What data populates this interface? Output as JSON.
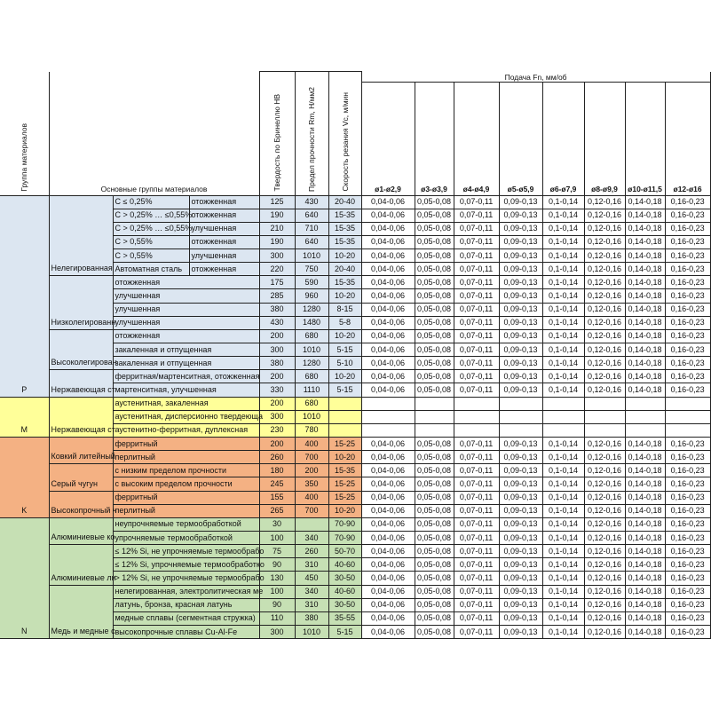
{
  "header": {
    "group_col": "Группа материалов",
    "main_groups": "Основные группы материалов",
    "hardness": "Твердость по Бринеллю НВ",
    "strength": "Предел прочности Rm, Н/мм2",
    "speed": "Скорость резания Vc, м/мин",
    "feed_title": "Подача Fn, мм/об",
    "diameters": [
      "ø1-ø2,9",
      "ø3-ø3,9",
      "ø4-ø4,9",
      "ø5-ø5,9",
      "ø6-ø7,9",
      "ø8-ø9,9",
      "ø10-ø11,5",
      "ø12-ø16"
    ]
  },
  "feed_values": [
    "0,04-0,06",
    "0,05-0,08",
    "0,07-0,11",
    "0,09-0,13",
    "0,1-0,14",
    "0,12-0,16",
    "0,14-0,18",
    "0,16-0,23"
  ],
  "groups": [
    {
      "code": "P",
      "color": "#dce6f1",
      "subgroups": [
        {
          "name": "Нелегированная",
          "rows": [
            {
              "c1": "C ≤ 0,25%",
              "c2": "отожженная",
              "hb": "125",
              "rm": "430",
              "vc": "20-40",
              "feed": true
            },
            {
              "c1": "C > 0,25% … ≤0,55%",
              "c2": "отожженная",
              "hb": "190",
              "rm": "640",
              "vc": "15-35",
              "feed": true
            },
            {
              "c1": "C > 0,25% … ≤0,55%",
              "c2": "улучшенная",
              "hb": "210",
              "rm": "710",
              "vc": "15-35",
              "feed": true
            },
            {
              "c1": "C > 0,55%",
              "c2": "отожженная",
              "hb": "190",
              "rm": "640",
              "vc": "15-35",
              "feed": true
            },
            {
              "c1": "C > 0,55%",
              "c2": "улучшенная",
              "hb": "300",
              "rm": "1010",
              "vc": "10-20",
              "feed": true
            },
            {
              "c1": "Автоматная сталь",
              "c2": "отожженная",
              "hb": "220",
              "rm": "750",
              "vc": "20-40",
              "feed": true
            }
          ]
        },
        {
          "name": "Низколегированн",
          "rows": [
            {
              "c1": "отожженная",
              "hb": "175",
              "rm": "590",
              "vc": "15-35",
              "feed": true
            },
            {
              "c1": "улучшенная",
              "hb": "285",
              "rm": "960",
              "vc": "10-20",
              "feed": true
            },
            {
              "c1": "улучшенная",
              "hb": "380",
              "rm": "1280",
              "vc": "8-15",
              "feed": true
            },
            {
              "c1": "улучшенная",
              "hb": "430",
              "rm": "1480",
              "vc": "5-8",
              "feed": true
            }
          ]
        },
        {
          "name": "Высоколегирован",
          "rows": [
            {
              "c1": "отожженная",
              "hb": "200",
              "rm": "680",
              "vc": "10-20",
              "feed": true
            },
            {
              "c1": "закаленная и отпущенная",
              "hb": "300",
              "rm": "1010",
              "vc": "5-15",
              "feed": true
            },
            {
              "c1": "закаленная и отпущенная",
              "hb": "380",
              "rm": "1280",
              "vc": "5-10",
              "feed": true
            }
          ]
        },
        {
          "name": "Нержавеющая ст",
          "rows": [
            {
              "c1": "ферритная/мартенситная, отожженная",
              "hb": "200",
              "rm": "680",
              "vc": "10-20",
              "feed": true
            },
            {
              "c1": "мартенситная, улучшенная",
              "hb": "330",
              "rm": "1110",
              "vc": "5-15",
              "feed": true
            }
          ]
        }
      ]
    },
    {
      "code": "M",
      "color": "#ffff99",
      "subgroups": [
        {
          "name": "Нержавеющая ст",
          "rows": [
            {
              "c1": "аустенитная, закаленная",
              "hb": "200",
              "rm": "680",
              "vc": "",
              "feed": false
            },
            {
              "c1": "аустенитная, дисперсионно твердеюща",
              "hb": "300",
              "rm": "1010",
              "vc": "",
              "feed": false
            },
            {
              "c1": "аустенитно-ферритная, дуплексная",
              "hb": "230",
              "rm": "780",
              "vc": "",
              "feed": false
            }
          ]
        }
      ]
    },
    {
      "code": "K",
      "color": "#f4b183",
      "subgroups": [
        {
          "name": "Ковкий литейный",
          "rows": [
            {
              "c1": "ферритный",
              "hb": "200",
              "rm": "400",
              "vc": "15-25",
              "feed": true
            },
            {
              "c1": "перлитный",
              "hb": "260",
              "rm": "700",
              "vc": "10-20",
              "feed": true
            }
          ]
        },
        {
          "name": "Серый чугун",
          "rows": [
            {
              "c1": "с низким пределом прочности",
              "hb": "180",
              "rm": "200",
              "vc": "15-35",
              "feed": true
            },
            {
              "c1": "с высоким пределом прочности",
              "hb": "245",
              "rm": "350",
              "vc": "15-25",
              "feed": true
            }
          ]
        },
        {
          "name": "Высокопрочный ч",
          "rows": [
            {
              "c1": "ферритный",
              "hb": "155",
              "rm": "400",
              "vc": "15-25",
              "feed": true
            },
            {
              "c1": "перлитный",
              "hb": "265",
              "rm": "700",
              "vc": "10-20",
              "feed": true
            }
          ]
        }
      ]
    },
    {
      "code": "N",
      "color": "#c6e0b4",
      "subgroups": [
        {
          "name": "Алюминиевые ко",
          "rows": [
            {
              "c1": "неупрочняемые термообработкой",
              "hb": "30",
              "rm": "",
              "vc": "70-90",
              "feed": true
            },
            {
              "c1": "упрочняемые термообработкой",
              "hb": "100",
              "rm": "340",
              "vc": "70-90",
              "feed": true
            }
          ]
        },
        {
          "name": "Алюминиевые ли",
          "rows": [
            {
              "c1": "≤ 12% Si, не упрочняемые термообрабо",
              "hb": "75",
              "rm": "260",
              "vc": "50-70",
              "feed": true
            },
            {
              "c1": "≤ 12% Si, упрочняемые термообработко",
              "hb": "90",
              "rm": "310",
              "vc": "40-60",
              "feed": true
            },
            {
              "c1": "> 12% Si, не упрочняемые термообрабо",
              "hb": "130",
              "rm": "450",
              "vc": "30-50",
              "feed": true
            }
          ]
        },
        {
          "name": "Медь и медные с",
          "rows": [
            {
              "c1": "нелегированная, электролитическая ме",
              "hb": "100",
              "rm": "340",
              "vc": "40-60",
              "feed": true
            },
            {
              "c1": "латунь, бронза, красная латунь",
              "hb": "90",
              "rm": "310",
              "vc": "30-50",
              "feed": true
            },
            {
              "c1": "медные сплавы (сегментная стружка)",
              "hb": "110",
              "rm": "380",
              "vc": "35-55",
              "feed": true
            },
            {
              "c1": "высокопрочные сплавы Cu-Al-Fe",
              "hb": "300",
              "rm": "1010",
              "vc": "5-15",
              "feed": true
            }
          ]
        }
      ]
    }
  ]
}
